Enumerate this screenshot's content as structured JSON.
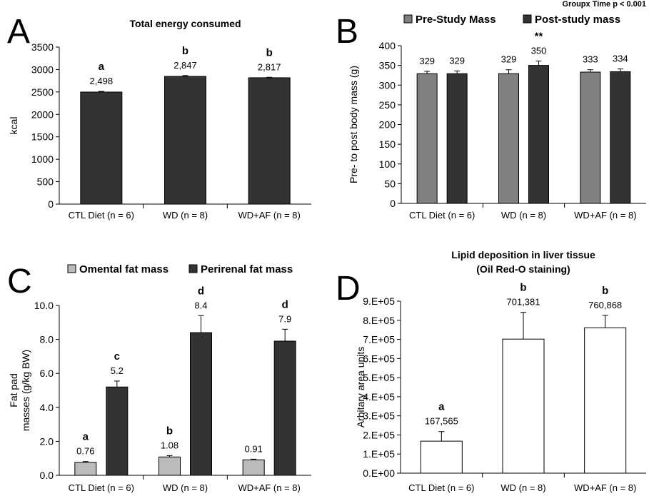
{
  "colors": {
    "dark": "#333333",
    "grey": "#808080",
    "light": "#bbbbbb",
    "white": "#ffffff"
  },
  "chart_data": [
    {
      "letter": "A",
      "type": "bar",
      "title": "Total energy consumed",
      "ylabel": "kcal",
      "ylim": [
        0,
        3500
      ],
      "yticks": [
        "0",
        "500",
        "1000",
        "1500",
        "2000",
        "2500",
        "3000",
        "3500"
      ],
      "categories": [
        "CTL Diet (n = 6)",
        "WD (n = 8)",
        "WD+AF (n = 8)"
      ],
      "series": [
        {
          "color": "#333333",
          "values": [
            2498,
            2847,
            2817
          ],
          "errors": [
            15,
            20,
            10
          ],
          "labels": [
            "2,498",
            "2,847",
            "2,817"
          ],
          "sig": [
            "a",
            "b",
            "b"
          ]
        }
      ]
    },
    {
      "letter": "B",
      "type": "bar",
      "note": "Groupx Time p < 0.001",
      "ylabel": "Pre- to post body mass (g)",
      "ylim": [
        0,
        400
      ],
      "yticks": [
        "0",
        "50",
        "100",
        "150",
        "200",
        "250",
        "300",
        "350",
        "400"
      ],
      "categories": [
        "CTL Diet (n = 6)",
        "WD (n = 8)",
        "WD+AF (n = 8)"
      ],
      "legend": "top",
      "series": [
        {
          "name": "Pre-Study Mass",
          "color": "#808080",
          "values": [
            329,
            329,
            333
          ],
          "errors": [
            6,
            10,
            6
          ],
          "labels": [
            "329",
            "329",
            "333"
          ]
        },
        {
          "name": "Post-study mass",
          "color": "#333333",
          "values": [
            329,
            350,
            334
          ],
          "errors": [
            7,
            11,
            7
          ],
          "labels": [
            "329",
            "350",
            "334"
          ],
          "sig": [
            "",
            "**",
            ""
          ]
        }
      ]
    },
    {
      "letter": "C",
      "type": "bar",
      "ylabel": "Fat pad masses (g/kg BW)",
      "ylim": [
        0,
        10
      ],
      "yticks": [
        "0.0",
        "2.0",
        "4.0",
        "6.0",
        "8.0",
        "10.0"
      ],
      "categories": [
        "CTL Diet (n = 6)",
        "WD (n = 8)",
        "WD+AF (n = 8)"
      ],
      "legend": "top",
      "series": [
        {
          "name": "Omental fat mass",
          "color": "#bbbbbb",
          "values": [
            0.76,
            1.08,
            0.91
          ],
          "errors": [
            0.05,
            0.08,
            0.04
          ],
          "labels": [
            "0.76",
            "1.08",
            "0.91"
          ],
          "sig": [
            "a",
            "b",
            ""
          ]
        },
        {
          "name": "Perirenal fat mass",
          "color": "#333333",
          "values": [
            5.2,
            8.4,
            7.9
          ],
          "errors": [
            0.35,
            1.0,
            0.7
          ],
          "labels": [
            "5.2",
            "8.4",
            "7.9"
          ],
          "sig": [
            "c",
            "d",
            "d"
          ]
        }
      ]
    },
    {
      "letter": "D",
      "type": "bar",
      "title": "Lipid deposition in liver tissue",
      "subtitle": "(Oil Red-O staining)",
      "ylabel": "Arbitary area units",
      "ylim": [
        0,
        900000
      ],
      "yticks": [
        "0.E+00",
        "1.E+05",
        "2.E+05",
        "3.E+05",
        "4.E+05",
        "5.E+05",
        "6.E+05",
        "7.E+05",
        "8.E+05",
        "9.E+05"
      ],
      "categories": [
        "CTL Diet (n = 6)",
        "WD (n = 8)",
        "WD+AF (n = 8)"
      ],
      "series": [
        {
          "color": "#ffffff",
          "values": [
            167565,
            701381,
            760868
          ],
          "errors": [
            50000,
            140000,
            65000
          ],
          "labels": [
            "167,565",
            "701,381",
            "760,868"
          ],
          "sig": [
            "a",
            "b",
            "b"
          ]
        }
      ]
    }
  ]
}
